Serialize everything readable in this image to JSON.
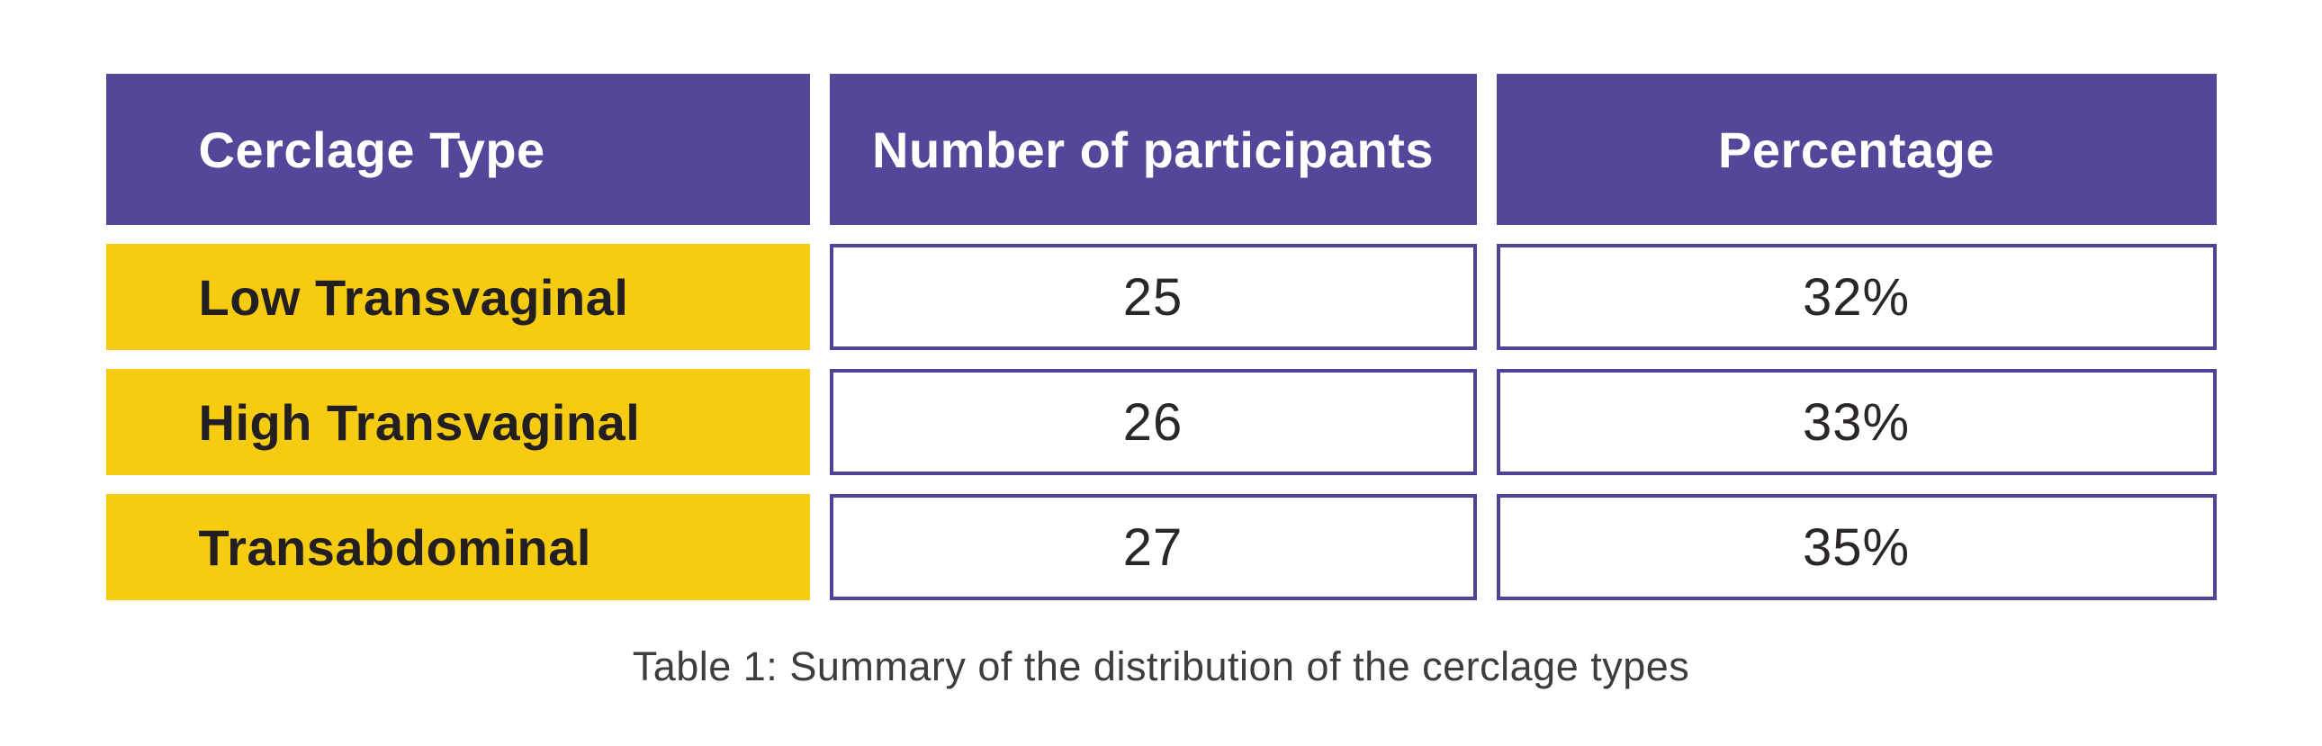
{
  "colors": {
    "background": "#ffffff",
    "header_bg": "#564699",
    "header_text": "#ffffff",
    "row_label_bg": "#f5cc12",
    "row_label_text": "#231f20",
    "value_cell_border": "#4e4397",
    "value_text": "#2b2728",
    "caption_text": "#3d3d3d"
  },
  "chart_data": {
    "type": "table",
    "title": "Table 1: Summary of the distribution of the cerclage types",
    "columns": [
      "Cerclage Type",
      "Number of participants",
      "Percentage"
    ],
    "rows": [
      [
        "Low Transvaginal",
        "25",
        "32%"
      ],
      [
        "High Transvaginal",
        "26",
        "33%"
      ],
      [
        "Transabdominal",
        "27",
        "35%"
      ]
    ],
    "participants_values": [
      25,
      26,
      27
    ],
    "percentage_values": [
      32,
      33,
      35
    ],
    "layout_hints": {
      "header_style": "solid purple band, white bold text",
      "label_column_style": "solid yellow band, dark bold text, left-aligned",
      "value_cells_style": "white with purple border, thin centered text",
      "caption_position": "bottom-center"
    }
  },
  "caption": "Table 1: Summary of the distribution of the cerclage types"
}
